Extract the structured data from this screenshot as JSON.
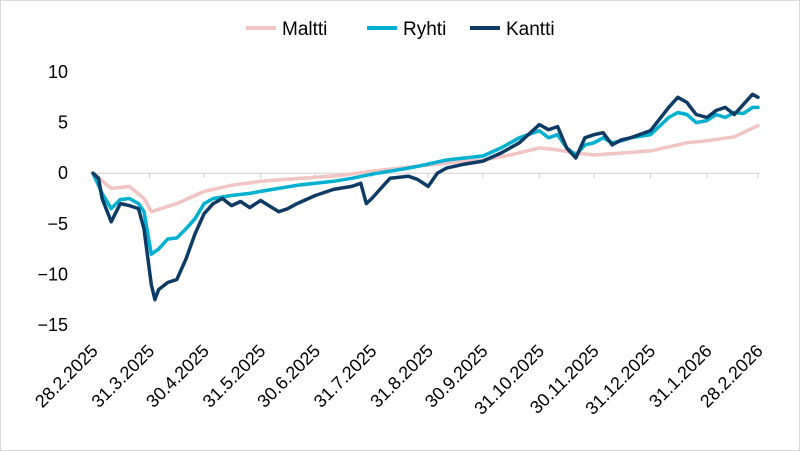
{
  "chart_data": {
    "type": "line",
    "title": "",
    "xlabel": "",
    "ylabel": "",
    "ylim": [
      -15,
      10
    ],
    "yticks": [
      10,
      5,
      0,
      -5,
      -10,
      -15
    ],
    "grid": false,
    "legend_position": "top",
    "x_ticks": [
      "28.2.2025",
      "31.3.2025",
      "30.4.2025",
      "31.5.2025",
      "30.6.2025",
      "31.7.2025",
      "31.8.2025",
      "30.9.2025",
      "31.10.2025",
      "30.11.2025",
      "31.12.2025",
      "31.1.2026",
      "28.2.2026"
    ],
    "series": [
      {
        "name": "Maltti",
        "color": "#f2c4c4",
        "points": [
          [
            "28.2.2025",
            0
          ],
          [
            "10.3.2025",
            -1.5
          ],
          [
            "20.3.2025",
            -1.3
          ],
          [
            "28.3.2025",
            -2.5
          ],
          [
            "1.4.2025",
            -3.8
          ],
          [
            "8.4.2025",
            -3.4
          ],
          [
            "15.4.2025",
            -3.0
          ],
          [
            "30.4.2025",
            -1.8
          ],
          [
            "15.5.2025",
            -1.2
          ],
          [
            "31.5.2025",
            -0.8
          ],
          [
            "15.6.2025",
            -0.6
          ],
          [
            "30.6.2025",
            -0.4
          ],
          [
            "15.7.2025",
            -0.2
          ],
          [
            "31.7.2025",
            0.2
          ],
          [
            "15.8.2025",
            0.5
          ],
          [
            "31.8.2025",
            0.8
          ],
          [
            "15.9.2025",
            1.1
          ],
          [
            "30.9.2025",
            1.3
          ],
          [
            "15.10.2025",
            1.8
          ],
          [
            "31.10.2025",
            2.5
          ],
          [
            "10.11.2025",
            2.3
          ],
          [
            "20.11.2025",
            2.0
          ],
          [
            "30.11.2025",
            1.8
          ],
          [
            "15.12.2025",
            2.0
          ],
          [
            "31.12.2025",
            2.2
          ],
          [
            "10.1.2026",
            2.6
          ],
          [
            "20.1.2026",
            3.0
          ],
          [
            "31.1.2026",
            3.2
          ],
          [
            "15.2.2026",
            3.6
          ],
          [
            "28.2.2026",
            4.7
          ]
        ]
      },
      {
        "name": "Ryhti",
        "color": "#00b0d0",
        "points": [
          [
            "28.2.2025",
            0
          ],
          [
            "5.3.2025",
            -2.0
          ],
          [
            "10.3.2025",
            -3.5
          ],
          [
            "15.3.2025",
            -2.6
          ],
          [
            "20.3.2025",
            -2.5
          ],
          [
            "25.3.2025",
            -3.0
          ],
          [
            "28.3.2025",
            -3.8
          ],
          [
            "1.4.2025",
            -8.0
          ],
          [
            "5.4.2025",
            -7.5
          ],
          [
            "10.4.2025",
            -6.5
          ],
          [
            "15.4.2025",
            -6.4
          ],
          [
            "20.4.2025",
            -5.5
          ],
          [
            "25.4.2025",
            -4.5
          ],
          [
            "30.4.2025",
            -3.0
          ],
          [
            "5.5.2025",
            -2.5
          ],
          [
            "15.5.2025",
            -2.2
          ],
          [
            "25.5.2025",
            -2.0
          ],
          [
            "31.5.2025",
            -1.8
          ],
          [
            "10.6.2025",
            -1.5
          ],
          [
            "20.6.2025",
            -1.2
          ],
          [
            "30.6.2025",
            -1.0
          ],
          [
            "10.7.2025",
            -0.8
          ],
          [
            "20.7.2025",
            -0.5
          ],
          [
            "31.7.2025",
            -0.1
          ],
          [
            "10.8.2025",
            0.2
          ],
          [
            "20.8.2025",
            0.5
          ],
          [
            "31.8.2025",
            0.9
          ],
          [
            "10.9.2025",
            1.3
          ],
          [
            "20.9.2025",
            1.5
          ],
          [
            "30.9.2025",
            1.7
          ],
          [
            "10.10.2025",
            2.5
          ],
          [
            "20.10.2025",
            3.5
          ],
          [
            "31.10.2025",
            4.2
          ],
          [
            "5.11.2025",
            3.5
          ],
          [
            "10.11.2025",
            3.8
          ],
          [
            "15.11.2025",
            2.5
          ],
          [
            "20.11.2025",
            1.8
          ],
          [
            "25.11.2025",
            2.8
          ],
          [
            "30.11.2025",
            3.0
          ],
          [
            "5.12.2025",
            3.5
          ],
          [
            "10.12.2025",
            3.0
          ],
          [
            "15.12.2025",
            3.2
          ],
          [
            "20.12.2025",
            3.5
          ],
          [
            "31.12.2025",
            3.8
          ],
          [
            "10.1.2026",
            5.5
          ],
          [
            "15.1.2026",
            6.0
          ],
          [
            "20.1.2026",
            5.8
          ],
          [
            "25.1.2026",
            5.0
          ],
          [
            "31.1.2026",
            5.2
          ],
          [
            "5.2.2026",
            5.8
          ],
          [
            "10.2.2026",
            5.5
          ],
          [
            "15.2.2026",
            6.0
          ],
          [
            "20.2.2026",
            5.9
          ],
          [
            "25.2.2026",
            6.5
          ],
          [
            "28.2.2026",
            6.5
          ]
        ]
      },
      {
        "name": "Kantti",
        "color": "#0d3b66",
        "points": [
          [
            "28.2.2025",
            0
          ],
          [
            "3.3.2025",
            -0.5
          ],
          [
            "5.3.2025",
            -2.5
          ],
          [
            "10.3.2025",
            -4.8
          ],
          [
            "15.3.2025",
            -3.0
          ],
          [
            "20.3.2025",
            -3.2
          ],
          [
            "25.3.2025",
            -3.5
          ],
          [
            "28.3.2025",
            -5.5
          ],
          [
            "1.4.2025",
            -11.0
          ],
          [
            "3.4.2025",
            -12.5
          ],
          [
            "5.4.2025",
            -11.5
          ],
          [
            "10.4.2025",
            -10.8
          ],
          [
            "15.4.2025",
            -10.5
          ],
          [
            "20.4.2025",
            -8.5
          ],
          [
            "25.4.2025",
            -6.0
          ],
          [
            "30.4.2025",
            -4.0
          ],
          [
            "5.5.2025",
            -3.0
          ],
          [
            "10.5.2025",
            -2.5
          ],
          [
            "15.5.2025",
            -3.2
          ],
          [
            "20.5.2025",
            -2.8
          ],
          [
            "25.5.2025",
            -3.4
          ],
          [
            "31.5.2025",
            -2.7
          ],
          [
            "10.6.2025",
            -3.8
          ],
          [
            "15.6.2025",
            -3.5
          ],
          [
            "20.6.2025",
            -3.0
          ],
          [
            "30.6.2025",
            -2.2
          ],
          [
            "10.7.2025",
            -1.6
          ],
          [
            "20.7.2025",
            -1.3
          ],
          [
            "25.7.2025",
            -1.0
          ],
          [
            "28.7.2025",
            -3.0
          ],
          [
            "31.7.2025",
            -2.5
          ],
          [
            "10.8.2025",
            -0.5
          ],
          [
            "20.8.2025",
            -0.3
          ],
          [
            "25.8.2025",
            -0.6
          ],
          [
            "31.8.2025",
            -1.3
          ],
          [
            "5.9.2025",
            0.0
          ],
          [
            "10.9.2025",
            0.5
          ],
          [
            "20.9.2025",
            0.9
          ],
          [
            "30.9.2025",
            1.2
          ],
          [
            "10.10.2025",
            2.0
          ],
          [
            "20.10.2025",
            3.0
          ],
          [
            "31.10.2025",
            4.8
          ],
          [
            "5.11.2025",
            4.3
          ],
          [
            "10.11.2025",
            4.6
          ],
          [
            "15.11.2025",
            2.5
          ],
          [
            "20.11.2025",
            1.5
          ],
          [
            "25.11.2025",
            3.5
          ],
          [
            "30.11.2025",
            3.8
          ],
          [
            "5.12.2025",
            4.0
          ],
          [
            "10.12.2025",
            2.8
          ],
          [
            "15.12.2025",
            3.3
          ],
          [
            "20.12.2025",
            3.5
          ],
          [
            "31.12.2025",
            4.2
          ],
          [
            "10.1.2026",
            6.5
          ],
          [
            "15.1.2026",
            7.5
          ],
          [
            "20.1.2026",
            7.0
          ],
          [
            "25.1.2026",
            5.8
          ],
          [
            "31.1.2026",
            5.5
          ],
          [
            "5.2.2026",
            6.2
          ],
          [
            "10.2.2026",
            6.5
          ],
          [
            "15.2.2026",
            5.8
          ],
          [
            "20.2.2026",
            6.8
          ],
          [
            "25.2.2026",
            7.8
          ],
          [
            "28.2.2026",
            7.5
          ]
        ]
      }
    ]
  }
}
